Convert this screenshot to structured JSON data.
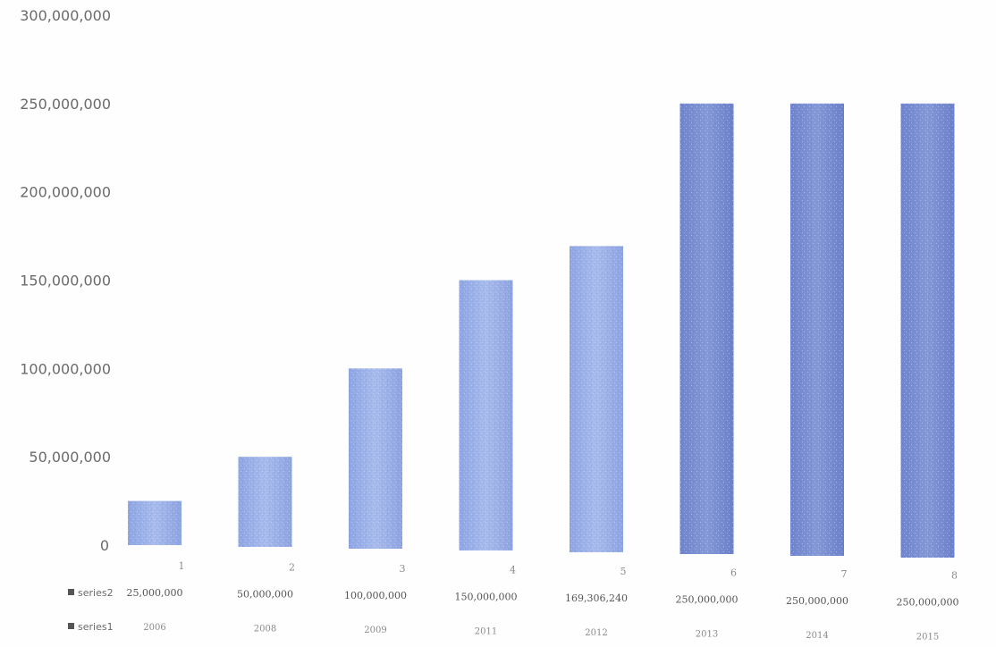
{
  "chart_data": {
    "type": "bar",
    "title": "",
    "categories": [
      "1",
      "2",
      "3",
      "4",
      "5",
      "6",
      "7",
      "8"
    ],
    "series": [
      {
        "name": "series2",
        "values": [
          25000000,
          50000000,
          100000000,
          150000000,
          169306240,
          250000000,
          250000000,
          250000000
        ],
        "labels": [
          "25,000,000",
          "50,000,000",
          "100,000,000",
          "150,000,000",
          "169,306,240",
          "250,000,000",
          "250,000,000",
          "250,000,000"
        ]
      },
      {
        "name": "series1",
        "labels": [
          "2006",
          "2008",
          "2009",
          "2011",
          "2012",
          "2013",
          "2014",
          "2015"
        ]
      }
    ],
    "ylim": [
      0,
      300000000
    ],
    "yticks": [
      "0",
      "50,000,000",
      "100,000,000",
      "150,000,000",
      "200,000,000",
      "250,000,000",
      "300,000,000"
    ],
    "ytick_values": [
      0,
      50000000,
      100000000,
      150000000,
      200000000,
      250000000,
      300000000
    ],
    "grid": false,
    "legend": "data-table-left",
    "colors": {
      "bar_light": "#9fb3e6",
      "bar_dark": "#7b8fd0",
      "legend_marker": "#555555"
    }
  }
}
